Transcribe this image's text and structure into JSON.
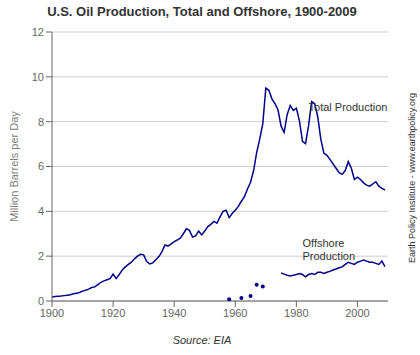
{
  "chart_data": {
    "type": "line",
    "title": "U.S. Oil Production, Total and Offshore, 1900-2009",
    "y_label": "Million Barrels per Day",
    "source": "Source: EIA",
    "credit": "Earth Policy Institute - www.earthpolicy.org",
    "xlim": [
      1900,
      2010
    ],
    "ylim": [
      0,
      12
    ],
    "xticks": [
      1900,
      1920,
      1940,
      1960,
      1980,
      2000
    ],
    "yticks": [
      0,
      2,
      4,
      6,
      8,
      10,
      12
    ],
    "grid": true,
    "series": [
      {
        "color": "#00008B",
        "line_style": "solid",
        "x": [
          1900,
          1901,
          1902,
          1903,
          1904,
          1905,
          1906,
          1907,
          1908,
          1909,
          1910,
          1911,
          1912,
          1913,
          1914,
          1915,
          1916,
          1917,
          1918,
          1919,
          1920,
          1921,
          1922,
          1923,
          1924,
          1925,
          1926,
          1927,
          1928,
          1929,
          1930,
          1931,
          1932,
          1933,
          1934,
          1935,
          1936,
          1937,
          1938,
          1939,
          1940,
          1941,
          1942,
          1943,
          1944,
          1945,
          1946,
          1947,
          1948,
          1949,
          1950,
          1951,
          1952,
          1953,
          1954,
          1955,
          1956,
          1957,
          1958,
          1959,
          1960,
          1961,
          1962,
          1963,
          1964,
          1965,
          1966,
          1967,
          1968,
          1969,
          1970,
          1971,
          1972,
          1973,
          1974,
          1975,
          1976,
          1977,
          1978,
          1979,
          1980,
          1981,
          1982,
          1983,
          1984,
          1985,
          1986,
          1987,
          1988,
          1989,
          1990,
          1991,
          1992,
          1993,
          1994,
          1995,
          1996,
          1997,
          1998,
          1999,
          2000,
          2001,
          2002,
          2003,
          2004,
          2005,
          2006,
          2007,
          2008,
          2009
        ],
        "values": [
          0.18,
          0.2,
          0.21,
          0.22,
          0.24,
          0.26,
          0.28,
          0.32,
          0.35,
          0.38,
          0.44,
          0.48,
          0.53,
          0.6,
          0.63,
          0.73,
          0.83,
          0.9,
          0.95,
          1.0,
          1.2,
          1.0,
          1.18,
          1.38,
          1.52,
          1.63,
          1.73,
          1.88,
          2.0,
          2.08,
          2.06,
          1.76,
          1.65,
          1.7,
          1.84,
          1.98,
          2.2,
          2.5,
          2.45,
          2.55,
          2.65,
          2.72,
          2.8,
          3.0,
          3.22,
          3.15,
          2.85,
          2.9,
          3.12,
          2.95,
          3.12,
          3.32,
          3.42,
          3.55,
          3.47,
          3.75,
          4.0,
          4.05,
          3.72,
          3.9,
          4.05,
          4.22,
          4.45,
          4.65,
          5.0,
          5.3,
          5.82,
          6.62,
          7.22,
          7.9,
          9.5,
          9.4,
          9.02,
          8.8,
          8.52,
          7.8,
          7.52,
          8.32,
          8.72,
          8.5,
          8.6,
          8.05,
          7.12,
          7.02,
          7.82,
          8.9,
          8.8,
          8.22,
          7.22,
          6.6,
          6.5,
          6.32,
          6.12,
          5.92,
          5.72,
          5.65,
          5.82,
          6.22,
          5.92,
          5.42,
          5.52,
          5.42,
          5.27,
          5.17,
          5.12,
          5.22,
          5.32,
          5.12,
          5.02,
          4.95
        ]
      },
      {
        "color": "#00008B",
        "line_style": "solid",
        "x": [
          1975,
          1976,
          1977,
          1978,
          1979,
          1980,
          1981,
          1982,
          1983,
          1984,
          1985,
          1986,
          1987,
          1988,
          1989,
          1990,
          1991,
          1992,
          1993,
          1994,
          1995,
          1996,
          1997,
          1998,
          1999,
          2000,
          2001,
          2002,
          2003,
          2004,
          2005,
          2006,
          2007,
          2008,
          2009
        ],
        "values": [
          1.25,
          1.2,
          1.15,
          1.12,
          1.15,
          1.18,
          1.22,
          1.18,
          1.08,
          1.18,
          1.22,
          1.18,
          1.28,
          1.28,
          1.23,
          1.28,
          1.32,
          1.38,
          1.43,
          1.48,
          1.52,
          1.63,
          1.73,
          1.68,
          1.63,
          1.73,
          1.78,
          1.83,
          1.78,
          1.73,
          1.73,
          1.68,
          1.63,
          1.78,
          1.53
        ]
      },
      {
        "color": "#00008B",
        "line_style": "none",
        "marker": "dot",
        "x": [
          1958,
          1962,
          1965,
          1967,
          1969
        ],
        "values": [
          0.08,
          0.13,
          0.22,
          0.72,
          0.65
        ]
      }
    ],
    "annotations": [
      {
        "text": "Total Production",
        "x": 1984,
        "y": 8.65
      },
      {
        "text": "Offshore\nProduction",
        "x": 1982,
        "y": 2.85
      }
    ]
  }
}
